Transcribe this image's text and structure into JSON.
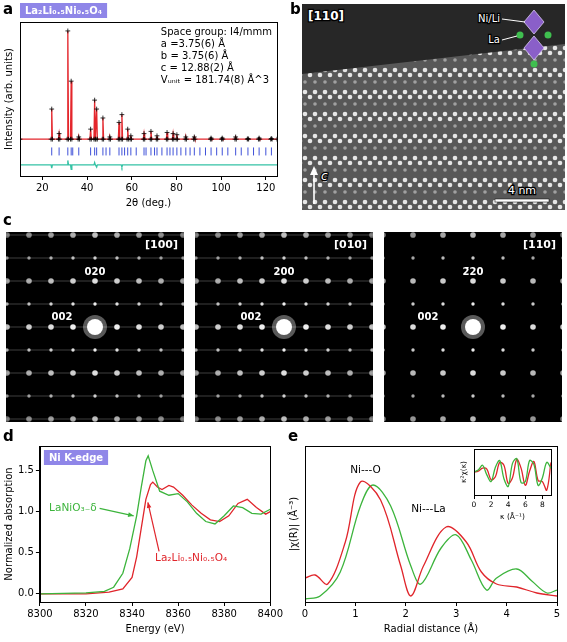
{
  "chart_data": [
    {
      "panel_label": "a",
      "type": "line",
      "title": "La₂Li₀.₅Ni₀.₅O₄",
      "annotations": [
        "Space group: I4/mmm",
        "a =3.75(6) Å",
        "b = 3.75(6) Å",
        "c = 12.88(2) Å",
        "Vᵤₙᵢₜ = 181.74(8) Å^3"
      ],
      "x_label": "2θ (deg.)",
      "y_label": "Intensity (arb. units)",
      "xlim": [
        10,
        125
      ],
      "xticks": [
        20,
        40,
        60,
        80,
        100,
        120
      ],
      "ylim": [
        -0.3,
        1.08
      ],
      "tick_labels": "x",
      "grid": false,
      "series": [
        {
          "type": "scatter",
          "marker": "cross",
          "color": "#000000",
          "x": [
            10,
            23.9,
            24.2,
            24.5,
            27.2,
            27.5,
            27.8,
            31.1,
            31.4,
            31.7,
            32.6,
            32.9,
            33.2,
            36.0,
            36.3,
            36.6,
            41.3,
            41.6,
            41.9,
            43.1,
            43.4,
            43.7,
            44.0,
            44.3,
            44.6,
            46.8,
            47.1,
            47.4,
            49.9,
            50.2,
            50.5,
            54.0,
            54.3,
            54.6,
            55.3,
            55.6,
            55.9,
            57.9,
            58.2,
            58.5,
            59.3,
            59.6,
            59.9,
            65.2,
            65.5,
            65.8,
            68.3,
            68.6,
            68.9,
            71.0,
            71.3,
            71.6,
            75.5,
            75.8,
            76.1,
            78.2,
            78.5,
            78.8,
            79.9,
            80.2,
            80.5,
            83.9,
            84.2,
            84.5,
            87.7,
            88.0,
            88.3,
            95.2,
            95.5,
            95.8,
            100.2,
            100.5,
            100.8,
            106.2,
            106.5,
            106.8,
            111.7,
            112.0,
            112.3,
            116.7,
            117.0,
            117.3,
            122.2,
            122.5,
            122.8,
            125
          ],
          "values": [
            0.03,
            0.03,
            0.3,
            0.03,
            0.03,
            0.08,
            0.03,
            0.03,
            1.0,
            0.03,
            0.03,
            0.55,
            0.03,
            0.03,
            0.05,
            0.03,
            0.03,
            0.12,
            0.03,
            0.03,
            0.38,
            0.03,
            0.03,
            0.3,
            0.03,
            0.03,
            0.22,
            0.03,
            0.03,
            0.05,
            0.03,
            0.03,
            0.18,
            0.03,
            0.03,
            0.25,
            0.03,
            0.03,
            0.12,
            0.03,
            0.03,
            0.06,
            0.03,
            0.03,
            0.08,
            0.03,
            0.03,
            0.1,
            0.03,
            0.03,
            0.06,
            0.03,
            0.03,
            0.09,
            0.03,
            0.03,
            0.08,
            0.03,
            0.03,
            0.07,
            0.03,
            0.03,
            0.05,
            0.03,
            0.03,
            0.05,
            0.03,
            0.03,
            0.04,
            0.03,
            0.03,
            0.04,
            0.03,
            0.03,
            0.05,
            0.03,
            0.03,
            0.035,
            0.03,
            0.03,
            0.04,
            0.03,
            0.03,
            0.035,
            0.03,
            0.03
          ]
        },
        {
          "type": "line",
          "color": "#e4262c",
          "x": [
            10,
            23.9,
            24.2,
            24.5,
            27.2,
            27.5,
            27.8,
            31.1,
            31.4,
            31.7,
            32.6,
            32.9,
            33.2,
            36.0,
            36.3,
            36.6,
            41.3,
            41.6,
            41.9,
            43.1,
            43.4,
            43.7,
            44.0,
            44.3,
            44.6,
            46.8,
            47.1,
            47.4,
            49.9,
            50.2,
            50.5,
            54.0,
            54.3,
            54.6,
            55.3,
            55.6,
            55.9,
            57.9,
            58.2,
            58.5,
            59.3,
            59.6,
            59.9,
            65.2,
            65.5,
            65.8,
            68.3,
            68.6,
            68.9,
            71.0,
            71.3,
            71.6,
            75.5,
            75.8,
            76.1,
            78.2,
            78.5,
            78.8,
            79.9,
            80.2,
            80.5,
            83.9,
            84.2,
            84.5,
            87.7,
            88.0,
            88.3,
            95.2,
            95.5,
            95.8,
            100.2,
            100.5,
            100.8,
            106.2,
            106.5,
            106.8,
            111.7,
            112.0,
            112.3,
            116.7,
            117.0,
            117.3,
            122.2,
            122.5,
            122.8,
            125
          ],
          "values": [
            0.03,
            0.03,
            0.3,
            0.03,
            0.03,
            0.08,
            0.03,
            0.03,
            1.0,
            0.03,
            0.03,
            0.55,
            0.03,
            0.03,
            0.05,
            0.03,
            0.03,
            0.12,
            0.03,
            0.03,
            0.38,
            0.03,
            0.03,
            0.3,
            0.03,
            0.03,
            0.22,
            0.03,
            0.03,
            0.05,
            0.03,
            0.03,
            0.18,
            0.03,
            0.03,
            0.25,
            0.03,
            0.03,
            0.12,
            0.03,
            0.03,
            0.06,
            0.03,
            0.03,
            0.08,
            0.03,
            0.03,
            0.1,
            0.03,
            0.03,
            0.06,
            0.03,
            0.03,
            0.09,
            0.03,
            0.03,
            0.08,
            0.03,
            0.03,
            0.07,
            0.03,
            0.03,
            0.05,
            0.03,
            0.03,
            0.05,
            0.03,
            0.03,
            0.04,
            0.03,
            0.03,
            0.04,
            0.03,
            0.03,
            0.05,
            0.03,
            0.03,
            0.035,
            0.03,
            0.03,
            0.04,
            0.03,
            0.03,
            0.035,
            0.03,
            0.03
          ]
        },
        {
          "type": "scatter",
          "marker": "vline",
          "color": "#3f51d8",
          "x": [
            24.2,
            27.5,
            31.4,
            32.9,
            33.6,
            36.3,
            41.6,
            43.4,
            44.3,
            47.1,
            48.5,
            50.2,
            54.3,
            55.6,
            56.8,
            58.2,
            59.6,
            62.0,
            65.5,
            66.4,
            68.6,
            70.2,
            71.3,
            73.5,
            75.8,
            77.1,
            78.5,
            80.2,
            82.0,
            84.2,
            86.1,
            88.0,
            90.5,
            93.0,
            95.5,
            98.0,
            100.5,
            103.0,
            106.5,
            109.0,
            112.0,
            114.5,
            117.0,
            120.0,
            122.5
          ],
          "values": [
            -0.08,
            -0.08,
            -0.08,
            -0.08,
            -0.08,
            -0.08,
            -0.08,
            -0.08,
            -0.08,
            -0.08,
            -0.08,
            -0.08,
            -0.08,
            -0.08,
            -0.08,
            -0.08,
            -0.08,
            -0.08,
            -0.08,
            -0.08,
            -0.08,
            -0.08,
            -0.08,
            -0.08,
            -0.08,
            -0.08,
            -0.08,
            -0.08,
            -0.08,
            -0.08,
            -0.08,
            -0.08,
            -0.08,
            -0.08,
            -0.08,
            -0.08,
            -0.08,
            -0.08,
            -0.08,
            -0.08,
            -0.08,
            -0.08,
            -0.08,
            -0.08,
            -0.08
          ]
        },
        {
          "type": "line",
          "color": "#35c2a5",
          "x": [
            10,
            23.9,
            24.2,
            24.5,
            31.1,
            31.4,
            31.7,
            32.6,
            32.9,
            33.2,
            43.1,
            43.4,
            43.7,
            44.0,
            44.3,
            44.6,
            55.3,
            55.6,
            55.9,
            125
          ],
          "values": [
            -0.2,
            -0.2,
            -0.23,
            -0.2,
            -0.2,
            -0.16,
            -0.2,
            -0.2,
            -0.24,
            -0.2,
            -0.2,
            -0.18,
            -0.2,
            -0.2,
            -0.22,
            -0.2,
            -0.2,
            -0.22,
            -0.2,
            -0.2
          ]
        }
      ]
    },
    {
      "panel_label": "d",
      "type": "line",
      "title": "Ni K-edge",
      "x_label": "Energy (eV)",
      "y_label": "Normalized absorption",
      "xlim": [
        8300,
        8400
      ],
      "xticks": [
        8300,
        8320,
        8340,
        8360,
        8380,
        8400
      ],
      "ylim": [
        -0.1,
        1.8
      ],
      "yticks": [
        {
          "value": 0,
          "label": "0.0"
        },
        {
          "value": 0.5,
          "label": "0.5"
        },
        {
          "value": 1,
          "label": "1.0"
        },
        {
          "value": 1.5,
          "label": "1.5"
        }
      ],
      "grid": false,
      "series": [
        {
          "name": "LaNiO₃₋δ",
          "type": "line",
          "color": "#3cb43c",
          "x": [
            8300,
            8320,
            8328,
            8332,
            8336,
            8339,
            8342,
            8344,
            8346,
            8347,
            8349,
            8352,
            8356,
            8360,
            8364,
            8368,
            8372,
            8376,
            8380,
            8384,
            8388,
            8392,
            8396,
            8400
          ],
          "values": [
            0.0,
            0.01,
            0.03,
            0.08,
            0.25,
            0.55,
            0.95,
            1.3,
            1.62,
            1.68,
            1.5,
            1.25,
            1.2,
            1.22,
            1.12,
            0.98,
            0.88,
            0.85,
            0.95,
            1.07,
            1.05,
            0.98,
            0.97,
            1.03
          ]
        },
        {
          "name": "La₂Li₀.₅Ni₀.₅O₄",
          "type": "line",
          "color": "#e0252b",
          "x": [
            8300,
            8320,
            8330,
            8336,
            8340,
            8342,
            8344,
            8346,
            8348,
            8349,
            8351,
            8353,
            8356,
            8358,
            8362,
            8366,
            8370,
            8374,
            8378,
            8382,
            8386,
            8390,
            8394,
            8398,
            8400
          ],
          "values": [
            0.0,
            0.0,
            0.02,
            0.06,
            0.2,
            0.45,
            0.8,
            1.15,
            1.33,
            1.36,
            1.3,
            1.27,
            1.32,
            1.3,
            1.2,
            1.08,
            0.98,
            0.9,
            0.88,
            0.95,
            1.1,
            1.15,
            1.05,
            0.97,
            1.0
          ]
        }
      ]
    },
    {
      "panel_label": "e",
      "type": "line",
      "annotations": [
        "Ni---O",
        "Ni---La"
      ],
      "x_label": "Radial distance (Å)",
      "y_label": "|χ(R)| (Å⁻³)",
      "xlim": [
        0,
        5
      ],
      "xticks": [
        0,
        1,
        2,
        3,
        4,
        5
      ],
      "ylim": [
        0,
        2.6
      ],
      "tick_labels": "x",
      "grid": false,
      "series": [
        {
          "type": "line",
          "color": "#e0252b",
          "x": [
            0,
            0.2,
            0.45,
            0.8,
            1.1,
            1.5,
            1.9,
            2.1,
            2.35,
            2.8,
            3.2,
            3.5,
            3.8,
            4.2,
            4.6,
            5
          ],
          "values": [
            0.4,
            0.45,
            0.3,
            1.0,
            2.0,
            1.7,
            0.6,
            0.1,
            0.6,
            1.25,
            1.0,
            0.5,
            0.3,
            0.25,
            0.15,
            0.1
          ]
        },
        {
          "type": "line",
          "color": "#3cb43c",
          "x": [
            0,
            0.3,
            0.7,
            1.1,
            1.35,
            1.7,
            2.1,
            2.3,
            2.7,
            3.0,
            3.3,
            3.6,
            3.8,
            4.2,
            4.5,
            4.8,
            5
          ],
          "values": [
            0.05,
            0.1,
            0.5,
            1.6,
            1.95,
            1.6,
            0.6,
            0.3,
            0.9,
            1.12,
            0.7,
            0.2,
            0.4,
            0.55,
            0.35,
            0.15,
            0.2
          ]
        }
      ],
      "inset": {
        "type": "line",
        "x_label": "κ (Å⁻¹)",
        "y_label": "κ²χ(κ)",
        "xlim": [
          0,
          9
        ],
        "xticks": [
          0,
          2,
          4,
          6,
          8
        ],
        "ylim": [
          -1.2,
          1.2
        ],
        "tick_labels": "x",
        "grid": false,
        "series": [
          {
            "type": "line",
            "color": "#3cb43c",
            "x": [
              0,
              0.5,
              1,
              1.5,
              2,
              2.5,
              3,
              3.5,
              4,
              4.5,
              5,
              5.5,
              6,
              6.5,
              7,
              7.5,
              8,
              8.5,
              9
            ],
            "values": [
              0,
              0.1,
              0.35,
              -0.15,
              -0.5,
              0.25,
              0.6,
              -0.35,
              -0.75,
              0.45,
              0.7,
              -0.55,
              -0.5,
              0.6,
              0.4,
              -0.7,
              -0.3,
              0.5,
              0.2
            ]
          },
          {
            "type": "line",
            "color": "#e0252b",
            "x": [
              0,
              0.5,
              1,
              1.5,
              2,
              2.5,
              3,
              3.5,
              4,
              4.5,
              5,
              5.5,
              6,
              6.5,
              7,
              7.5,
              8,
              8.5,
              9
            ],
            "values": [
              0,
              0.05,
              0.2,
              0.15,
              -0.4,
              -0.25,
              0.5,
              0.35,
              -0.6,
              -0.3,
              0.65,
              0.2,
              -0.7,
              0.05,
              0.55,
              -0.45,
              -0.5,
              -0.95,
              0.5
            ]
          }
        ]
      }
    }
  ],
  "panels": [
    {
      "panel_label": "b",
      "zone_axis": "[110]",
      "structure_labels": [
        "Ni/Li",
        "La"
      ],
      "axis_label": "c",
      "scale_bar": "4 nm"
    },
    {
      "panel_label": "c",
      "patterns": [
        {
          "zone_axis": "[100]",
          "spots": [
            "020",
            "002"
          ]
        },
        {
          "zone_axis": "[010]",
          "spots": [
            "200",
            "002"
          ]
        },
        {
          "zone_axis": "[110]",
          "spots": [
            "2̄20",
            "002"
          ]
        }
      ]
    }
  ]
}
